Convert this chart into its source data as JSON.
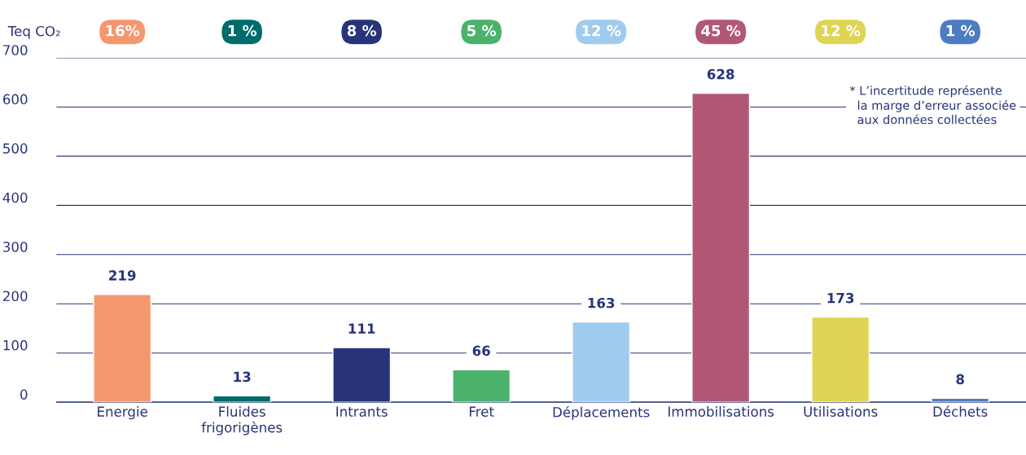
{
  "chart_data": {
    "type": "bar",
    "ylabel": "Teq CO₂",
    "categories": [
      "Energie",
      "Fluides\nfrigorigènes",
      "Intrants",
      "Fret",
      "Déplacements",
      "Immobilisations",
      "Utilisations",
      "Déchets"
    ],
    "values": [
      219,
      13,
      111,
      66,
      163,
      628,
      173,
      8
    ],
    "colors": [
      "#f4976f",
      "#006b6b",
      "#283479",
      "#4bb26c",
      "#9fcbee",
      "#b05873",
      "#e0d455",
      "#4d7cc2"
    ],
    "ylim": [
      0,
      700
    ],
    "yticks": [
      0,
      100,
      200,
      300,
      400,
      500,
      600,
      700
    ],
    "grid": "y",
    "data_labels": true,
    "annotations": [
      "16%",
      "1 %",
      "8 %",
      "5 %",
      "12 %",
      "45 %",
      "12 %",
      "1 %",
      "* L’incertitude représente\n  la marge d’erreur associée\n  aux données collectées"
    ]
  }
}
